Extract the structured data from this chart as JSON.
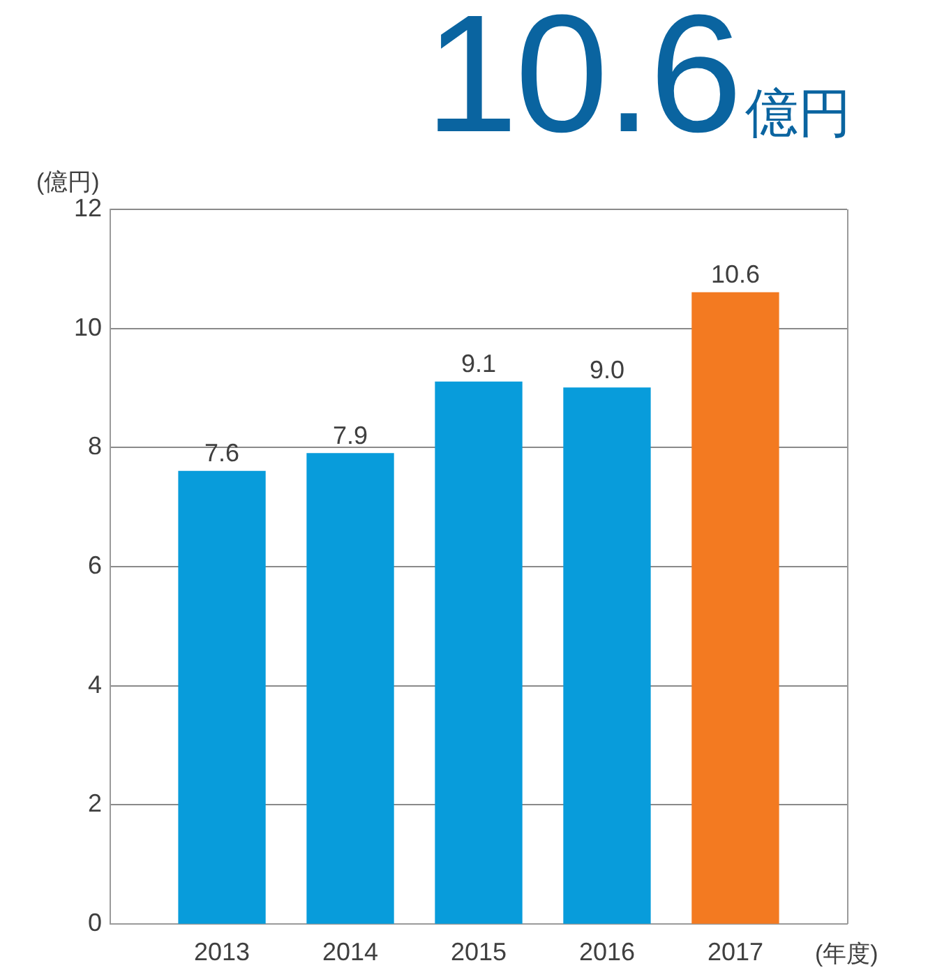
{
  "chart_data": {
    "type": "bar",
    "title": "10.6億円",
    "ylabel": "(億円)",
    "xlabel": "(年度)",
    "categories": [
      "2013",
      "2014",
      "2015",
      "2016",
      "2017"
    ],
    "values": [
      7.6,
      7.9,
      9.1,
      9.0,
      10.6
    ],
    "colors": [
      "#089cdb",
      "#089cdb",
      "#089cdb",
      "#089cdb",
      "#f37a21"
    ],
    "value_labels": [
      "7.6",
      "7.9",
      "9.1",
      "9.0",
      "10.6"
    ],
    "ylim": [
      0,
      12
    ],
    "yticks": [
      0,
      2,
      4,
      6,
      8,
      10,
      12
    ],
    "grid": "y"
  }
}
